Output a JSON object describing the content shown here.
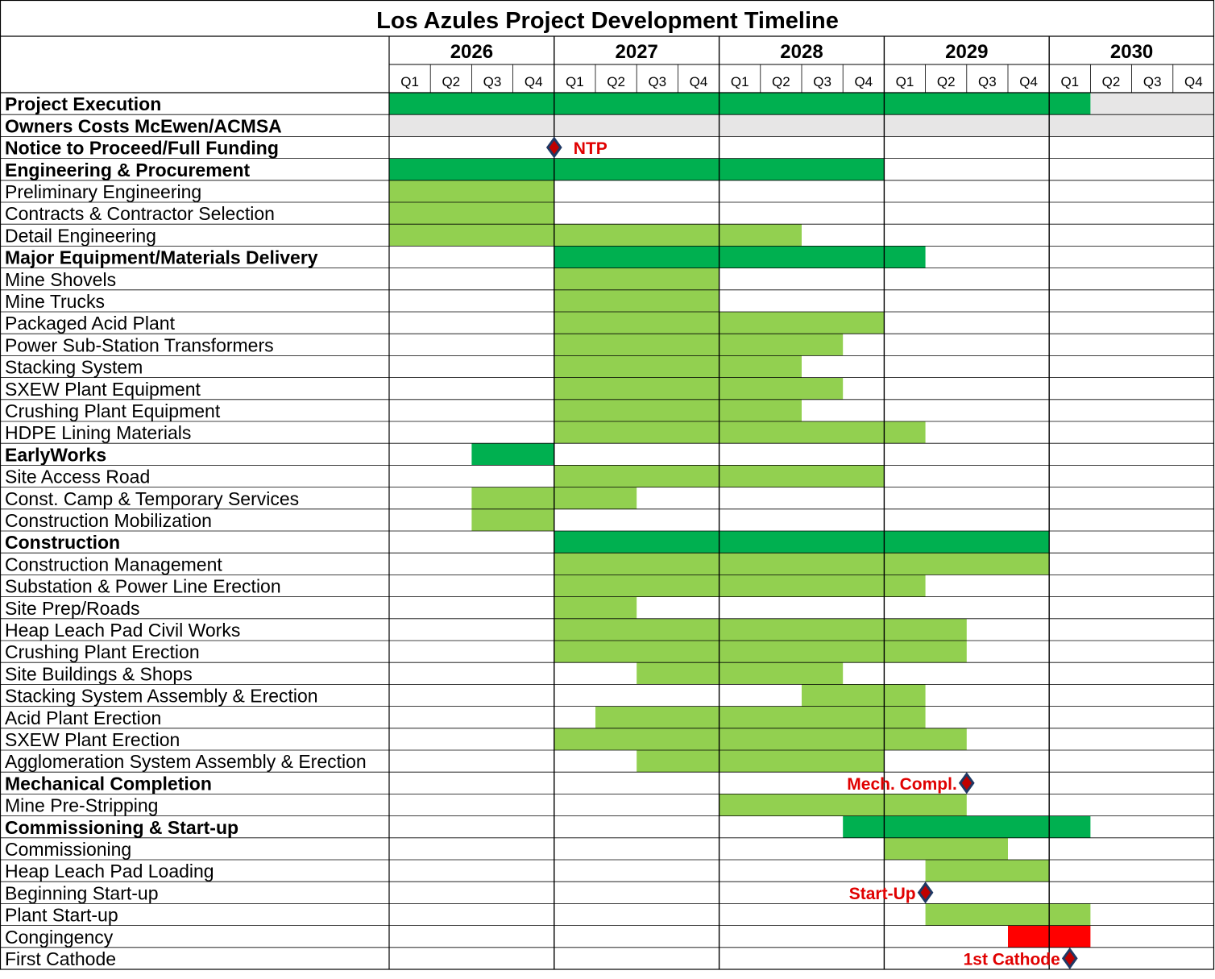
{
  "chart_data": {
    "type": "gantt",
    "title": "Los Azules Project Development Timeline",
    "years": [
      "2026",
      "2027",
      "2028",
      "2029",
      "2030"
    ],
    "quarters": [
      "Q1",
      "Q2",
      "Q3",
      "Q4"
    ],
    "colors": {
      "summary_bar": "#00b050",
      "task_bar": "#92d050",
      "contingency_bar": "#ff0000",
      "owners_costs_fill": "#e7e6e6",
      "milestone_fill": "#c00000",
      "milestone_edge": "#1f3864",
      "milestone_label": "#e00000",
      "grid": "#000000"
    },
    "tasks": [
      {
        "label": "Project Execution",
        "bold": true,
        "bars": [
          {
            "start": "2026-Q1",
            "end": "2030-Q1",
            "kind": "summary"
          }
        ],
        "shade_rest": true
      },
      {
        "label": "Owners Costs McEwen/ACMSA",
        "bold": true,
        "bars": [],
        "shade_all": true
      },
      {
        "label": "Notice to Proceed/Full Funding",
        "bold": true,
        "bars": [],
        "milestone": {
          "at": "2027-Q1 start",
          "text": "NTP",
          "text_side": "right"
        }
      },
      {
        "label": "Engineering & Procurement",
        "bold": true,
        "bars": [
          {
            "start": "2026-Q1",
            "end": "2028-Q4",
            "kind": "summary"
          }
        ]
      },
      {
        "label": "Preliminary Engineering",
        "bold": false,
        "bars": [
          {
            "start": "2026-Q1",
            "end": "2026-Q4",
            "kind": "task"
          }
        ]
      },
      {
        "label": "Contracts & Contractor Selection",
        "bold": false,
        "bars": [
          {
            "start": "2026-Q1",
            "end": "2026-Q4",
            "kind": "task"
          }
        ]
      },
      {
        "label": "Detail Engineering",
        "bold": false,
        "bars": [
          {
            "start": "2026-Q1",
            "end": "2028-Q2",
            "kind": "task"
          }
        ]
      },
      {
        "label": "Major Equipment/Materials Delivery",
        "bold": true,
        "bars": [
          {
            "start": "2027-Q1",
            "end": "2029-Q1",
            "kind": "summary"
          }
        ]
      },
      {
        "label": "Mine Shovels",
        "bold": false,
        "bars": [
          {
            "start": "2027-Q1",
            "end": "2027-Q4",
            "kind": "task"
          }
        ]
      },
      {
        "label": "Mine Trucks",
        "bold": false,
        "bars": [
          {
            "start": "2027-Q1",
            "end": "2027-Q4",
            "kind": "task"
          }
        ]
      },
      {
        "label": "Packaged Acid Plant",
        "bold": false,
        "bars": [
          {
            "start": "2027-Q1",
            "end": "2028-Q4",
            "kind": "task"
          }
        ]
      },
      {
        "label": "Power Sub-Station Transformers",
        "bold": false,
        "bars": [
          {
            "start": "2027-Q1",
            "end": "2028-Q3",
            "kind": "task"
          }
        ]
      },
      {
        "label": "Stacking System",
        "bold": false,
        "bars": [
          {
            "start": "2027-Q1",
            "end": "2028-Q2",
            "kind": "task"
          }
        ]
      },
      {
        "label": "SXEW Plant Equipment",
        "bold": false,
        "bars": [
          {
            "start": "2027-Q1",
            "end": "2028-Q3",
            "kind": "task"
          }
        ]
      },
      {
        "label": "Crushing Plant Equipment",
        "bold": false,
        "bars": [
          {
            "start": "2027-Q1",
            "end": "2028-Q2",
            "kind": "task"
          }
        ]
      },
      {
        "label": "HDPE Lining Materials",
        "bold": false,
        "bars": [
          {
            "start": "2027-Q1",
            "end": "2029-Q1",
            "kind": "task"
          }
        ]
      },
      {
        "label": "EarlyWorks",
        "bold": true,
        "bars": [
          {
            "start": "2026-Q3",
            "end": "2026-Q4",
            "kind": "summary"
          }
        ]
      },
      {
        "label": "Site Access Road",
        "bold": false,
        "bars": [
          {
            "start": "2027-Q1",
            "end": "2028-Q4",
            "kind": "task"
          }
        ]
      },
      {
        "label": "Const. Camp & Temporary Services",
        "bold": false,
        "bars": [
          {
            "start": "2026-Q3",
            "end": "2027-Q2",
            "kind": "task"
          }
        ]
      },
      {
        "label": "Construction Mobilization",
        "bold": false,
        "bars": [
          {
            "start": "2026-Q3",
            "end": "2026-Q4",
            "kind": "task"
          }
        ]
      },
      {
        "label": "Construction",
        "bold": true,
        "bars": [
          {
            "start": "2027-Q1",
            "end": "2029-Q4",
            "kind": "summary"
          }
        ]
      },
      {
        "label": "Construction Management",
        "bold": false,
        "bars": [
          {
            "start": "2027-Q1",
            "end": "2029-Q4",
            "kind": "task"
          }
        ]
      },
      {
        "label": "Substation & Power Line Erection",
        "bold": false,
        "bars": [
          {
            "start": "2027-Q1",
            "end": "2029-Q1",
            "kind": "task"
          }
        ]
      },
      {
        "label": "Site Prep/Roads",
        "bold": false,
        "bars": [
          {
            "start": "2027-Q1",
            "end": "2027-Q2",
            "kind": "task"
          }
        ]
      },
      {
        "label": "Heap Leach Pad Civil Works",
        "bold": false,
        "bars": [
          {
            "start": "2027-Q1",
            "end": "2029-Q2",
            "kind": "task"
          }
        ]
      },
      {
        "label": "Crushing Plant Erection",
        "bold": false,
        "bars": [
          {
            "start": "2027-Q1",
            "end": "2029-Q2",
            "kind": "task"
          }
        ]
      },
      {
        "label": "Site Buildings & Shops",
        "bold": false,
        "bars": [
          {
            "start": "2027-Q3",
            "end": "2028-Q3",
            "kind": "task"
          }
        ]
      },
      {
        "label": "Stacking System Assembly & Erection",
        "bold": false,
        "bars": [
          {
            "start": "2028-Q3",
            "end": "2029-Q1",
            "kind": "task"
          }
        ]
      },
      {
        "label": "Acid Plant Erection",
        "bold": false,
        "bars": [
          {
            "start": "2027-Q2",
            "end": "2029-Q1",
            "kind": "task"
          }
        ]
      },
      {
        "label": "SXEW Plant Erection",
        "bold": false,
        "bars": [
          {
            "start": "2027-Q1",
            "end": "2029-Q2",
            "kind": "task"
          }
        ]
      },
      {
        "label": "Agglomeration System Assembly & Erection",
        "bold": false,
        "bars": [
          {
            "start": "2027-Q3",
            "end": "2028-Q4",
            "kind": "task"
          }
        ]
      },
      {
        "label": "Mechanical Completion",
        "bold": true,
        "bars": [],
        "milestone": {
          "at": "2029-Q2 end",
          "text": "Mech. Compl.",
          "text_side": "left"
        }
      },
      {
        "label": "Mine Pre-Stripping",
        "bold": false,
        "bars": [
          {
            "start": "2028-Q1",
            "end": "2029-Q2",
            "kind": "task"
          }
        ]
      },
      {
        "label": "Commissioning & Start-up",
        "bold": true,
        "bars": [
          {
            "start": "2028-Q4",
            "end": "2030-Q1",
            "kind": "summary"
          }
        ]
      },
      {
        "label": "Commissioning",
        "bold": false,
        "bars": [
          {
            "start": "2029-Q1",
            "end": "2029-Q3",
            "kind": "task"
          }
        ]
      },
      {
        "label": "Heap Leach Pad Loading",
        "bold": false,
        "bars": [
          {
            "start": "2029-Q2",
            "end": "2029-Q4",
            "kind": "task"
          }
        ]
      },
      {
        "label": "Beginning Start-up",
        "bold": false,
        "bars": [],
        "milestone": {
          "at": "2029-Q2 start",
          "text": "Start-Up",
          "text_side": "left"
        }
      },
      {
        "label": "Plant Start-up",
        "bold": false,
        "bars": [
          {
            "start": "2029-Q2",
            "end": "2030-Q1",
            "kind": "task"
          }
        ]
      },
      {
        "label": "Congingency",
        "bold": false,
        "bars": [
          {
            "start": "2029-Q4",
            "end": "2030-Q1",
            "kind": "contingency"
          }
        ]
      },
      {
        "label": "First Cathode",
        "bold": false,
        "bars": [],
        "milestone": {
          "at": "2030-Q1 middle",
          "text": "1st Cathode",
          "text_side": "left"
        }
      }
    ]
  }
}
